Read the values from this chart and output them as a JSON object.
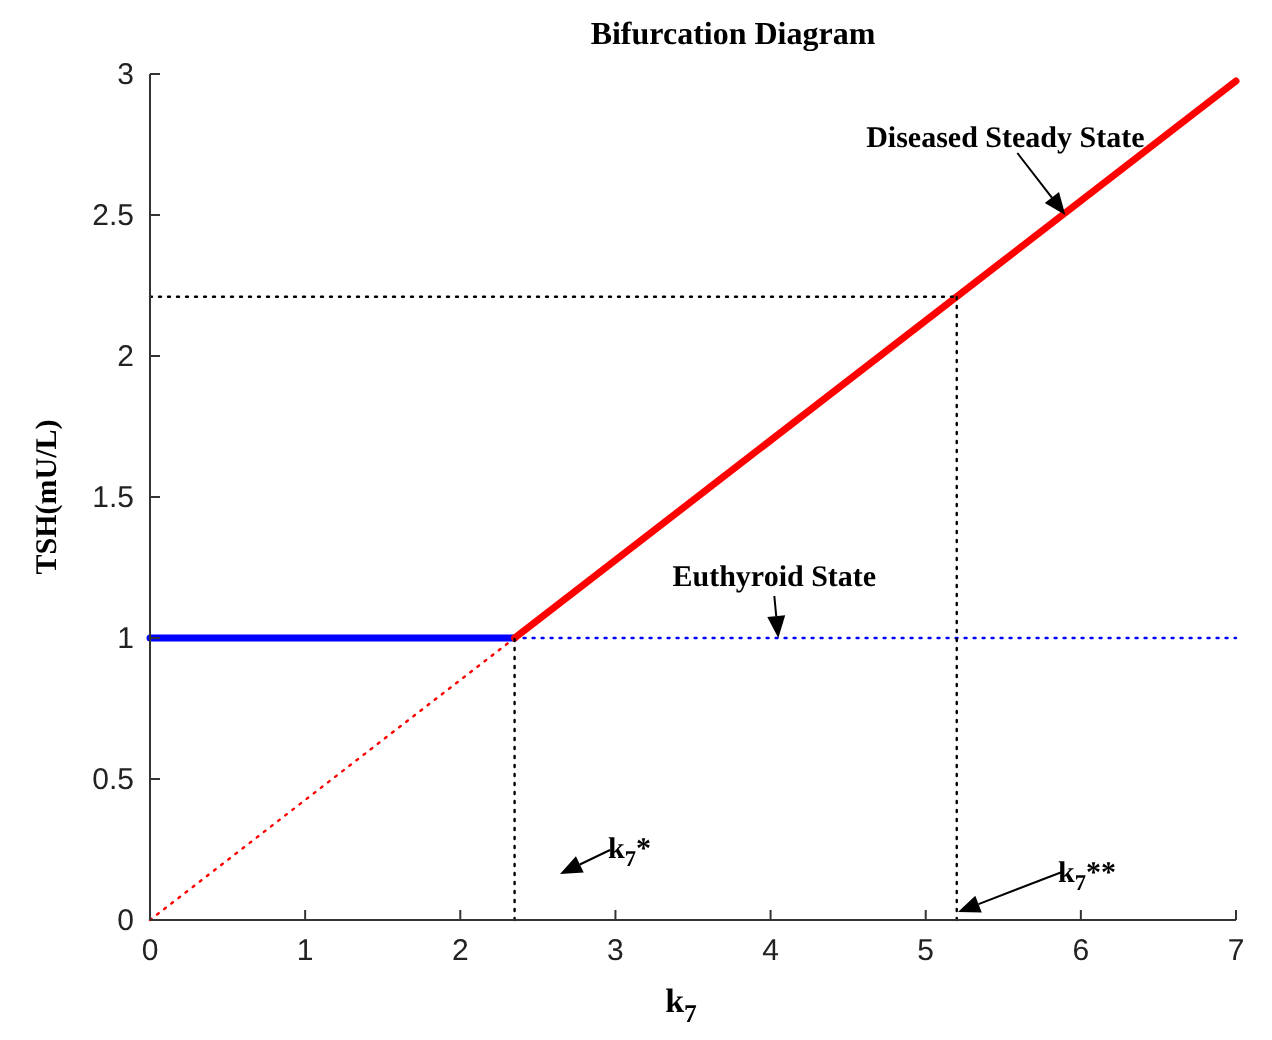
{
  "chart_data": {
    "type": "line",
    "title": "Bifurcation Diagram",
    "xlabel": "k$_{7}$",
    "ylabel": "TSH(mU/L)",
    "xlim": [
      0,
      7
    ],
    "xticks": [
      0,
      1,
      2,
      3,
      4,
      5,
      6,
      7
    ],
    "ylim": [
      0,
      3
    ],
    "yticks": [
      0,
      0.5,
      1,
      1.5,
      2,
      2.5,
      3
    ],
    "grid": false,
    "series": [
      {
        "color": "#0000ff",
        "line_style": "solid",
        "x": [
          0,
          2.35
        ],
        "values": [
          1,
          1
        ]
      },
      {
        "color": "#0000ff",
        "line_style": "dotted",
        "x": [
          2.35,
          7
        ],
        "values": [
          1,
          1
        ]
      },
      {
        "color": "#ff0000",
        "line_style": "solid",
        "x": [
          2.35,
          7
        ],
        "values": [
          1,
          2.975
        ]
      },
      {
        "color": "#ff0000",
        "line_style": "dotted",
        "x": [
          0,
          2.35
        ],
        "values": [
          0,
          1
        ]
      },
      {
        "color": "#000000",
        "line_style": "dotted",
        "x": [
          2.35,
          2.35
        ],
        "values": [
          0,
          1
        ]
      },
      {
        "color": "#000000",
        "line_style": "dotted",
        "x": [
          5.2,
          5.2
        ],
        "values": [
          0,
          2.21
        ]
      },
      {
        "color": "#000000",
        "line_style": "dotted",
        "x": [
          0,
          5.2
        ],
        "values": [
          2.21,
          2.21
        ]
      }
    ],
    "annotations": [
      {
        "text": "Diseased Steady State",
        "x": 5.9,
        "y": 2.5
      },
      {
        "text": "Euthyroid State",
        "x": 4.05,
        "y": 1
      },
      "k$_{7}$*",
      "k$_{7}$**"
    ]
  }
}
